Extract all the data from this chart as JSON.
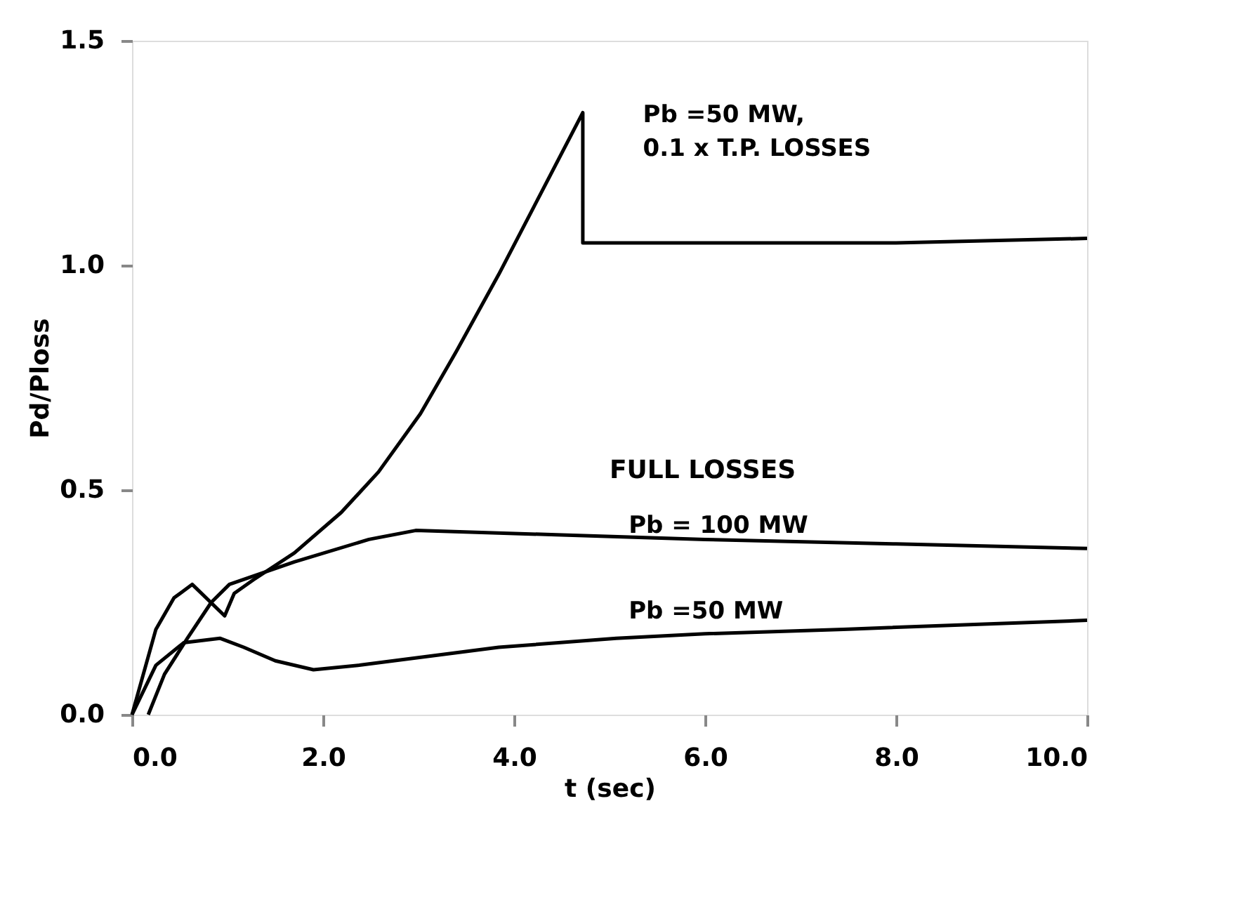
{
  "chart_data": {
    "type": "line",
    "xlabel": "t (sec)",
    "ylabel": "Pd/Ploss",
    "xlim": [
      0,
      10
    ],
    "ylim": [
      0,
      1.5
    ],
    "xticks": [
      {
        "value": 0,
        "label": "0.0"
      },
      {
        "value": 2,
        "label": "2.0"
      },
      {
        "value": 4,
        "label": "4.0"
      },
      {
        "value": 6,
        "label": "6.0"
      },
      {
        "value": 8,
        "label": "8.0"
      },
      {
        "value": 10,
        "label": "10.0"
      }
    ],
    "yticks": [
      {
        "value": 0,
        "label": "0.0"
      },
      {
        "value": 0.5,
        "label": "0.5"
      },
      {
        "value": 1.0,
        "label": "1.0"
      },
      {
        "value": 1.5,
        "label": "1.5"
      }
    ],
    "grid": false,
    "line_style": "solid",
    "marker": "none",
    "annotations": [
      "FULL LOSSES"
    ],
    "series": [
      {
        "name": "Pb =50 MW, 0.1 x T.P. LOSSES",
        "color": "#000000",
        "x": [
          0,
          0.25,
          0.44,
          0.63,
          0.97,
          1.07,
          1.27,
          1.7,
          2.19,
          2.58,
          3.02,
          3.4,
          3.84,
          4.28,
          4.72,
          4.72,
          6.0,
          8.0,
          10.0
        ],
        "values": [
          0,
          0.19,
          0.26,
          0.29,
          0.22,
          0.27,
          0.3,
          0.36,
          0.45,
          0.54,
          0.67,
          0.81,
          0.98,
          1.16,
          1.34,
          1.05,
          1.05,
          1.05,
          1.06
        ]
      },
      {
        "name": "Pb = 100 MW",
        "color": "#000000",
        "x": [
          0.17,
          0.34,
          0.58,
          0.83,
          1.02,
          1.7,
          2.48,
          2.97,
          4.5,
          6.0,
          8.0,
          10.0
        ],
        "values": [
          0,
          0.09,
          0.17,
          0.25,
          0.29,
          0.34,
          0.39,
          0.41,
          0.4,
          0.39,
          0.38,
          0.37
        ]
      },
      {
        "name": "Pb =50 MW",
        "color": "#000000",
        "x": [
          0,
          0.25,
          0.54,
          0.92,
          1.17,
          1.5,
          1.9,
          2.38,
          3.11,
          3.84,
          5.07,
          6.0,
          7.45,
          10.0
        ],
        "values": [
          0,
          0.11,
          0.16,
          0.17,
          0.15,
          0.12,
          0.1,
          0.11,
          0.13,
          0.15,
          0.17,
          0.18,
          0.19,
          0.21
        ]
      }
    ]
  }
}
